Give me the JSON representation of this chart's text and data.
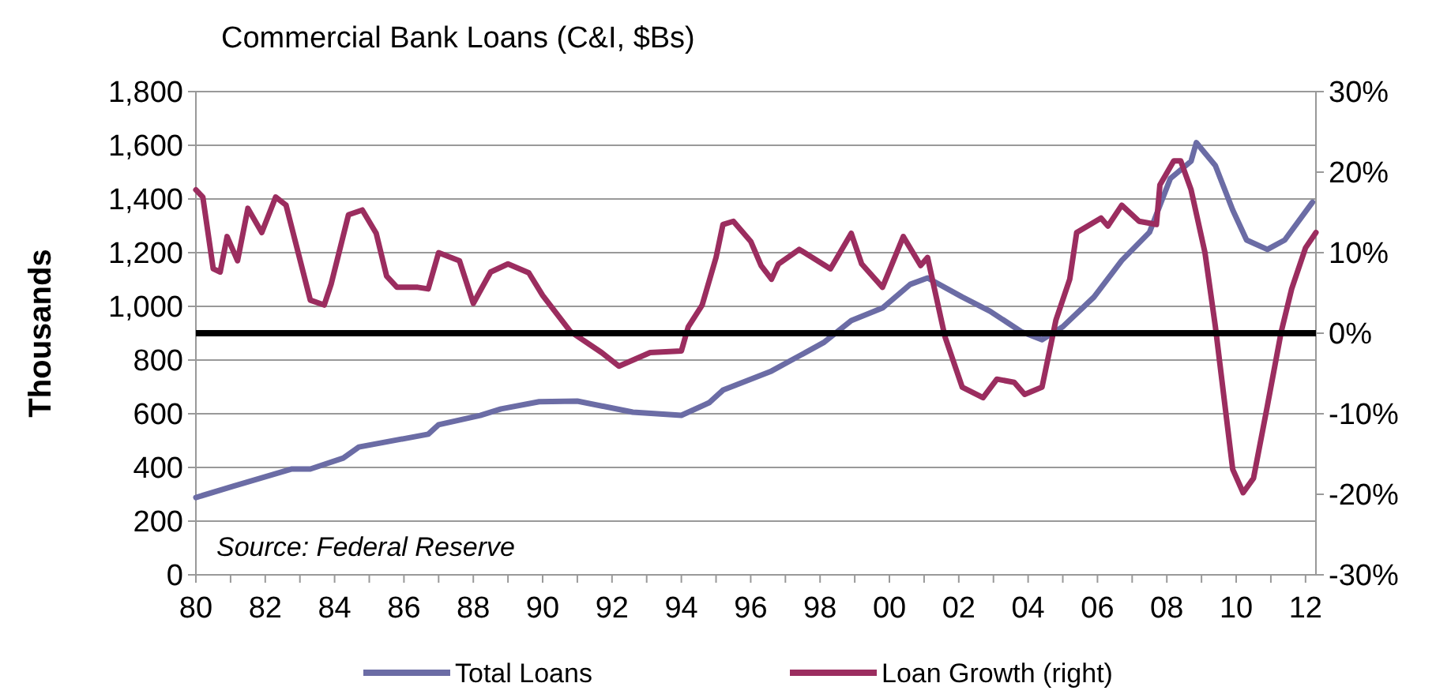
{
  "chart_data": {
    "type": "line",
    "title": "Commercial Bank Loans (C&I, $Bs)",
    "ylabel": "Thousands",
    "annotations": [
      "Source: Federal Reserve"
    ],
    "xlim": [
      1980,
      2012.3
    ],
    "xticks": [
      {
        "value": 1980,
        "label": "80"
      },
      {
        "value": 1981,
        "label": null
      },
      {
        "value": 1982,
        "label": "82"
      },
      {
        "value": 1983,
        "label": null
      },
      {
        "value": 1984,
        "label": "84"
      },
      {
        "value": 1985,
        "label": null
      },
      {
        "value": 1986,
        "label": "86"
      },
      {
        "value": 1987,
        "label": null
      },
      {
        "value": 1988,
        "label": "88"
      },
      {
        "value": 1989,
        "label": null
      },
      {
        "value": 1990,
        "label": "90"
      },
      {
        "value": 1991,
        "label": null
      },
      {
        "value": 1992,
        "label": "92"
      },
      {
        "value": 1993,
        "label": null
      },
      {
        "value": 1994,
        "label": "94"
      },
      {
        "value": 1995,
        "label": null
      },
      {
        "value": 1996,
        "label": "96"
      },
      {
        "value": 1997,
        "label": null
      },
      {
        "value": 1998,
        "label": "98"
      },
      {
        "value": 1999,
        "label": null
      },
      {
        "value": 2000,
        "label": "00"
      },
      {
        "value": 2001,
        "label": null
      },
      {
        "value": 2002,
        "label": "02"
      },
      {
        "value": 2003,
        "label": null
      },
      {
        "value": 2004,
        "label": "04"
      },
      {
        "value": 2005,
        "label": null
      },
      {
        "value": 2006,
        "label": "06"
      },
      {
        "value": 2007,
        "label": null
      },
      {
        "value": 2008,
        "label": "08"
      },
      {
        "value": 2009,
        "label": null
      },
      {
        "value": 2010,
        "label": "10"
      },
      {
        "value": 2011,
        "label": null
      },
      {
        "value": 2012,
        "label": "12"
      }
    ],
    "ylim": [
      0,
      1800
    ],
    "yticks": [
      {
        "value": 0,
        "label": "0"
      },
      {
        "value": 200,
        "label": "200"
      },
      {
        "value": 400,
        "label": "400"
      },
      {
        "value": 600,
        "label": "600"
      },
      {
        "value": 800,
        "label": "800"
      },
      {
        "value": 1000,
        "label": "1,000"
      },
      {
        "value": 1200,
        "label": "1,200"
      },
      {
        "value": 1400,
        "label": "1,400"
      },
      {
        "value": 1600,
        "label": "1,600"
      },
      {
        "value": 1800,
        "label": "1,800"
      }
    ],
    "y2lim": [
      -30,
      30
    ],
    "y2ticks": [
      {
        "value": -30,
        "label": "-30%"
      },
      {
        "value": -20,
        "label": "-20%"
      },
      {
        "value": -10,
        "label": "-10%"
      },
      {
        "value": 0,
        "label": "0%"
      },
      {
        "value": 10,
        "label": "10%"
      },
      {
        "value": 20,
        "label": "20%"
      },
      {
        "value": 30,
        "label": "30%"
      }
    ],
    "grid": "y",
    "legend": "bottom",
    "line_style": "solid",
    "ref_lines": [
      {
        "axis": "y2",
        "value": 0,
        "color": "#000000"
      }
    ],
    "series": [
      {
        "name": "Total Loans",
        "color": "#6b6ca5",
        "x": [
          1980,
          1981.05,
          1982.75,
          1983.3,
          1984.25,
          1984.7,
          1986.7,
          1987,
          1988.2,
          1988.8,
          1989.9,
          1991,
          1992.6,
          1994,
          1994.8,
          1995.2,
          1996.6,
          1998.1,
          1998.9,
          1999.8,
          2000.6,
          2001.1,
          2002.1,
          2002.9,
          2003.8,
          2004.4,
          2005,
          2005.9,
          2006.7,
          2007.5,
          2008.1,
          2008.7,
          2008.85,
          2009.4,
          2009.9,
          2010.3,
          2010.9,
          2011.4,
          2012.2
        ],
        "values": [
          288,
          329,
          394,
          394,
          435,
          476,
          524,
          559,
          594,
          618,
          645,
          647,
          606,
          594,
          641,
          688,
          759,
          865,
          947,
          994,
          1082,
          1106,
          1035,
          982,
          906,
          876,
          924,
          1035,
          1171,
          1276,
          1476,
          1541,
          1610,
          1524,
          1359,
          1247,
          1212,
          1247,
          1388
        ]
      },
      {
        "name": "Loan Growth (right)",
        "color": "#9b2d5f",
        "axis": "y2",
        "x": [
          1980,
          1980.2,
          1980.5,
          1980.7,
          1980.9,
          1981.2,
          1981.5,
          1981.9,
          1982.3,
          1982.6,
          1983.3,
          1983.7,
          1983.9,
          1984.4,
          1984.8,
          1985.2,
          1985.5,
          1985.8,
          1986.4,
          1986.7,
          1987,
          1987.6,
          1988,
          1988.5,
          1989,
          1989.6,
          1990,
          1990.8,
          1991.7,
          1992.2,
          1993.1,
          1994,
          1994.2,
          1994.6,
          1995,
          1995.2,
          1995.5,
          1996,
          1996.3,
          1996.6,
          1996.8,
          1997.4,
          1998.3,
          1998.9,
          1999.2,
          1999.8,
          2000.4,
          2000.9,
          2001.1,
          2001.6,
          2002.1,
          2002.7,
          2003.1,
          2003.6,
          2003.9,
          2004.4,
          2004.8,
          2005.2,
          2005.4,
          2006.1,
          2006.3,
          2006.7,
          2007.2,
          2007.7,
          2007.8,
          2008.2,
          2008.4,
          2008.7,
          2009.1,
          2009.4,
          2009.9,
          2010.2,
          2010.5,
          2010.9,
          2011.3,
          2011.6,
          2012,
          2012.3
        ],
        "values": [
          17.8,
          16.9,
          8,
          7.6,
          12,
          9,
          15.5,
          12.5,
          16.9,
          15.9,
          4.1,
          3.5,
          6.1,
          14.7,
          15.3,
          12.4,
          7.1,
          5.7,
          5.7,
          5.5,
          10,
          9,
          3.7,
          7.6,
          8.6,
          7.5,
          4.7,
          0.2,
          -2.4,
          -4.1,
          -2.4,
          -2.2,
          0.8,
          3.5,
          9.4,
          13.5,
          13.9,
          11.4,
          8.4,
          6.7,
          8.6,
          10.4,
          8,
          12.4,
          8.6,
          5.7,
          12,
          8.4,
          9.4,
          -0.4,
          -6.7,
          -8,
          -5.7,
          -6.1,
          -7.6,
          -6.7,
          1.6,
          6.7,
          12.5,
          14.3,
          13.3,
          15.9,
          13.9,
          13.5,
          18.4,
          21.4,
          21.4,
          17.8,
          10,
          0.8,
          -16.9,
          -19.8,
          -18,
          -9,
          0.2,
          5.5,
          10.6,
          12.5
        ]
      }
    ]
  }
}
